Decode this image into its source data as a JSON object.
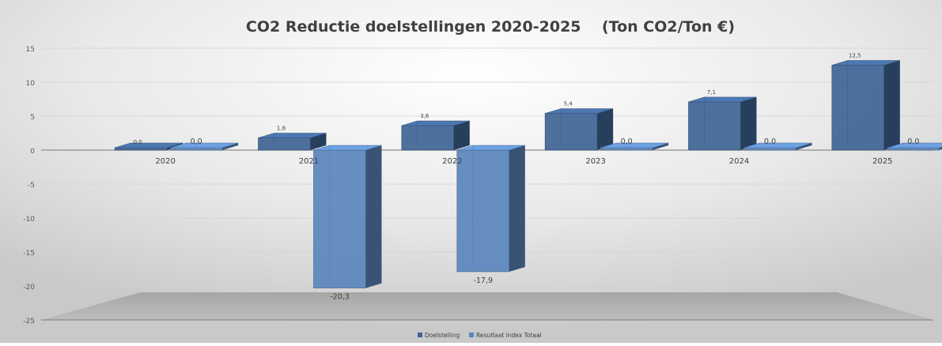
{
  "chart_data": {
    "type": "bar",
    "title": "CO2 Reductie doelstellingen 2020-2025    (Ton CO2/Ton €)",
    "categories": [
      "2020",
      "2021",
      "2022",
      "2023",
      "2024",
      "2025"
    ],
    "series": [
      {
        "name": "Doelstelling",
        "values": [
          0.0,
          1.8,
          3.6,
          5.4,
          7.1,
          12.5
        ],
        "labels": [
          "0,0",
          "1,8",
          "3,6",
          "5,4",
          "7,1",
          "12,5"
        ],
        "color": "#3f6494"
      },
      {
        "name": "Resultaat index Totaal",
        "values": [
          0.0,
          -20.3,
          -17.9,
          0.0,
          0.0,
          0.0
        ],
        "labels": [
          "0,0",
          "-20,3",
          "-17,9",
          "0,0",
          "0,0",
          "0,0"
        ],
        "color": "#5b86bd"
      }
    ],
    "yticks": [
      15,
      10,
      5,
      0,
      -5,
      -10,
      -15,
      -20,
      -25
    ],
    "ylim": [
      -25,
      15
    ],
    "grid": true,
    "legend": "bottom",
    "xlabel": "",
    "ylabel": ""
  }
}
